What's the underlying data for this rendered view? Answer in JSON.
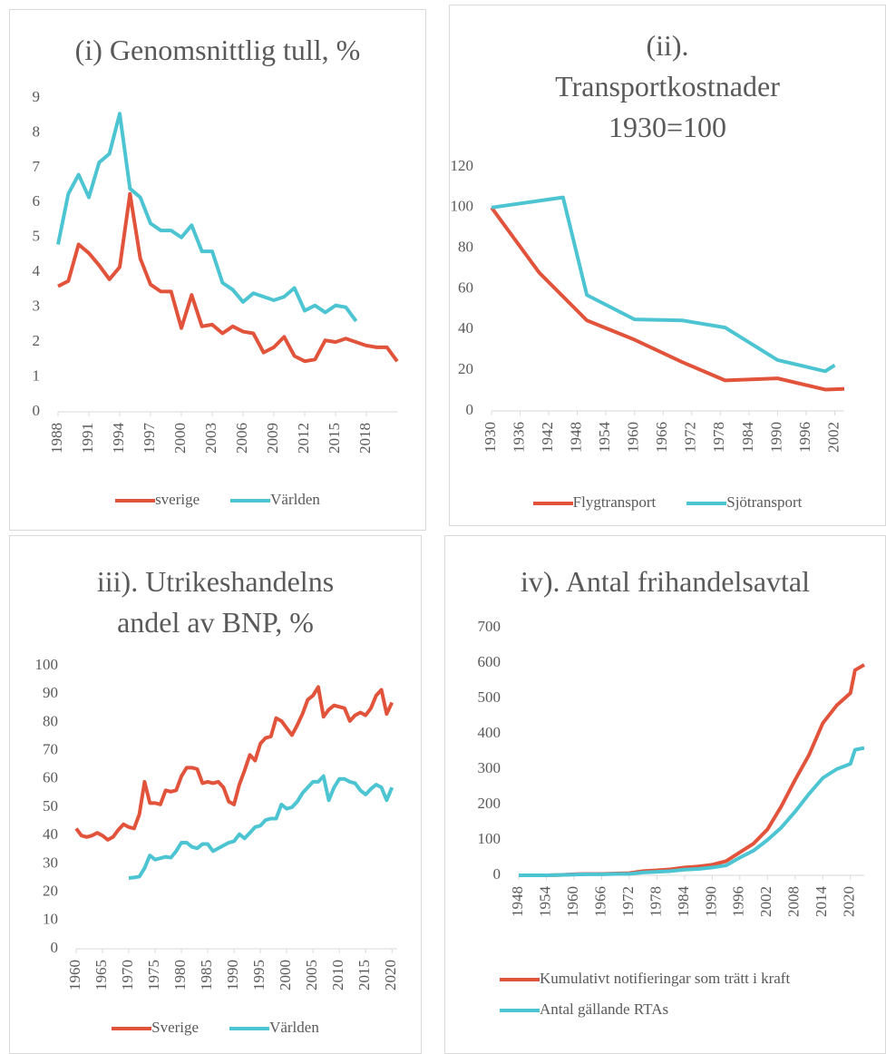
{
  "chart_data": [
    {
      "type": "line",
      "title": "(i) Genomsnittlig tull, %",
      "x": [
        1988,
        1989,
        1990,
        1991,
        1992,
        1993,
        1994,
        1995,
        1996,
        1997,
        1998,
        1999,
        2000,
        2001,
        2002,
        2003,
        2004,
        2005,
        2006,
        2007,
        2008,
        2009,
        2010,
        2011,
        2012,
        2013,
        2014,
        2015,
        2016,
        2017,
        2018,
        2019,
        2020,
        2021
      ],
      "xlim": [
        1988,
        2021
      ],
      "xticks": [
        1988,
        1991,
        1994,
        1997,
        2000,
        2003,
        2006,
        2009,
        2012,
        2015,
        2018
      ],
      "ylim": [
        0,
        9
      ],
      "yticks": [
        0,
        1,
        2,
        3,
        4,
        5,
        6,
        7,
        8,
        9
      ],
      "grid": false,
      "legend": "bottom",
      "series": [
        {
          "name": "sverige",
          "color": "#e1533b",
          "values": [
            3.6,
            3.75,
            4.8,
            4.55,
            4.2,
            3.8,
            4.15,
            6.25,
            4.4,
            3.65,
            3.45,
            3.45,
            2.4,
            3.35,
            2.45,
            2.5,
            2.25,
            2.45,
            2.3,
            2.25,
            1.7,
            1.85,
            2.15,
            1.6,
            1.45,
            1.5,
            2.05,
            2.0,
            2.1,
            2.0,
            1.9,
            1.85,
            1.85,
            1.45
          ]
        },
        {
          "name": "Världen",
          "color": "#4cc4d2",
          "values": [
            4.8,
            6.25,
            6.8,
            6.15,
            7.15,
            7.4,
            8.55,
            6.4,
            6.15,
            5.4,
            5.2,
            5.2,
            5.0,
            5.35,
            4.6,
            4.6,
            3.7,
            3.5,
            3.15,
            3.4,
            3.3,
            3.2,
            3.3,
            3.55,
            2.9,
            3.05,
            2.85,
            3.05,
            3.0,
            2.6,
            null,
            null,
            null,
            null
          ]
        }
      ]
    },
    {
      "type": "line",
      "title": "(ii). Transportkostnader 1930=100",
      "xlim": [
        1930,
        2004
      ],
      "xticks": [
        1930,
        1936,
        1942,
        1948,
        1954,
        1960,
        1966,
        1972,
        1978,
        1984,
        1990,
        1996,
        2002
      ],
      "ylim": [
        0,
        120
      ],
      "yticks": [
        0,
        20,
        40,
        60,
        80,
        100,
        120
      ],
      "grid": false,
      "legend": "bottom",
      "series": [
        {
          "name": "Flygtransport",
          "color": "#e1533b",
          "x": [
            1930,
            1940,
            1950,
            1960,
            1970,
            1979,
            1990,
            2000,
            2004
          ],
          "values": [
            100,
            68,
            44.5,
            35,
            24,
            15,
            16,
            10.5,
            10.8
          ]
        },
        {
          "name": "Sjötransport",
          "color": "#4cc4d2",
          "x": [
            1930,
            1945,
            1950,
            1960,
            1970,
            1979,
            1990,
            2000,
            2002
          ],
          "values": [
            100,
            105,
            57,
            45,
            44.5,
            41,
            25,
            19.5,
            22.5
          ]
        }
      ]
    },
    {
      "type": "line",
      "title": "iii). Utrikeshandelns andel av BNP, %",
      "x": [
        1960,
        1961,
        1962,
        1963,
        1964,
        1965,
        1966,
        1967,
        1968,
        1969,
        1970,
        1971,
        1972,
        1973,
        1974,
        1975,
        1976,
        1977,
        1978,
        1979,
        1980,
        1981,
        1982,
        1983,
        1984,
        1985,
        1986,
        1987,
        1988,
        1989,
        1990,
        1991,
        1992,
        1993,
        1994,
        1995,
        1996,
        1997,
        1998,
        1999,
        2000,
        2001,
        2002,
        2003,
        2004,
        2005,
        2006,
        2007,
        2008,
        2009,
        2010,
        2011,
        2012,
        2013,
        2014,
        2015,
        2016,
        2017,
        2018,
        2019,
        2020
      ],
      "xlim": [
        1960,
        2021
      ],
      "xticks": [
        1960,
        1965,
        1970,
        1975,
        1980,
        1985,
        1990,
        1995,
        2000,
        2005,
        2010,
        2015,
        2020
      ],
      "ylim": [
        0,
        100
      ],
      "yticks": [
        0,
        10,
        20,
        30,
        40,
        50,
        60,
        70,
        80,
        90,
        100
      ],
      "grid": false,
      "legend": "bottom",
      "series": [
        {
          "name": "Sverige",
          "color": "#e1533b",
          "values": [
            42.5,
            40,
            39.5,
            40,
            41,
            40,
            38.5,
            39.5,
            42,
            44,
            43,
            42.5,
            47.5,
            59,
            51.5,
            51.5,
            51,
            56,
            55.5,
            56,
            61,
            64,
            64,
            63.5,
            58.5,
            59,
            58.5,
            59,
            57,
            52,
            51,
            58,
            63,
            68.5,
            66.5,
            72.5,
            74.5,
            75,
            81.5,
            80.5,
            78,
            75.5,
            79,
            83,
            88,
            89.5,
            92.5,
            82,
            84.5,
            86,
            85.5,
            85,
            80.5,
            82.5,
            83.5,
            82.5,
            85,
            89.5,
            91.5,
            83,
            87
          ]
        },
        {
          "name": "Världen",
          "color": "#4cc4d2",
          "values": [
            null,
            null,
            null,
            null,
            null,
            null,
            null,
            null,
            null,
            null,
            25,
            25.2,
            25.5,
            28.5,
            33,
            31.5,
            32,
            32.5,
            32.2,
            34.5,
            37.5,
            37.5,
            36,
            35.5,
            37,
            37,
            34.5,
            35.5,
            36.5,
            37.5,
            38,
            40.5,
            39,
            41,
            43,
            43.5,
            45.5,
            46,
            46,
            51,
            49.5,
            50,
            52,
            55,
            57,
            59,
            59,
            61,
            52.5,
            57,
            60,
            60,
            59,
            58.5,
            56,
            54.5,
            56.5,
            58,
            57,
            52.5,
            57
          ]
        }
      ]
    },
    {
      "type": "line",
      "title": "iv). Antal frihandelsavtal",
      "x": [
        1948,
        1951,
        1954,
        1957,
        1960,
        1963,
        1966,
        1969,
        1972,
        1975,
        1978,
        1981,
        1984,
        1987,
        1990,
        1993,
        1996,
        1999,
        2002,
        2005,
        2008,
        2011,
        2014,
        2017,
        2020,
        2021,
        2023
      ],
      "xlim": [
        1948,
        2023
      ],
      "xticks": [
        1948,
        1954,
        1960,
        1966,
        1972,
        1978,
        1984,
        1990,
        1996,
        2002,
        2008,
        2014,
        2020
      ],
      "ylim": [
        0,
        700
      ],
      "yticks": [
        0,
        100,
        200,
        300,
        400,
        500,
        600,
        700
      ],
      "grid": false,
      "legend": "bottom-stacked",
      "series": [
        {
          "name": "Kumulativt notifieringar som trätt i kraft",
          "color": "#e1533b",
          "values": [
            0,
            0,
            0,
            1,
            3,
            4,
            4,
            5,
            6,
            12,
            14,
            17,
            22,
            25,
            30,
            40,
            65,
            90,
            130,
            195,
            270,
            340,
            430,
            480,
            515,
            580,
            595
          ]
        },
        {
          "name": "Antal gällande RTAs",
          "color": "#4cc4d2",
          "values": [
            0,
            0,
            0,
            1,
            2,
            3,
            3,
            4,
            4,
            8,
            10,
            12,
            16,
            18,
            22,
            28,
            50,
            70,
            100,
            135,
            180,
            230,
            275,
            300,
            315,
            355,
            360
          ]
        }
      ]
    }
  ]
}
